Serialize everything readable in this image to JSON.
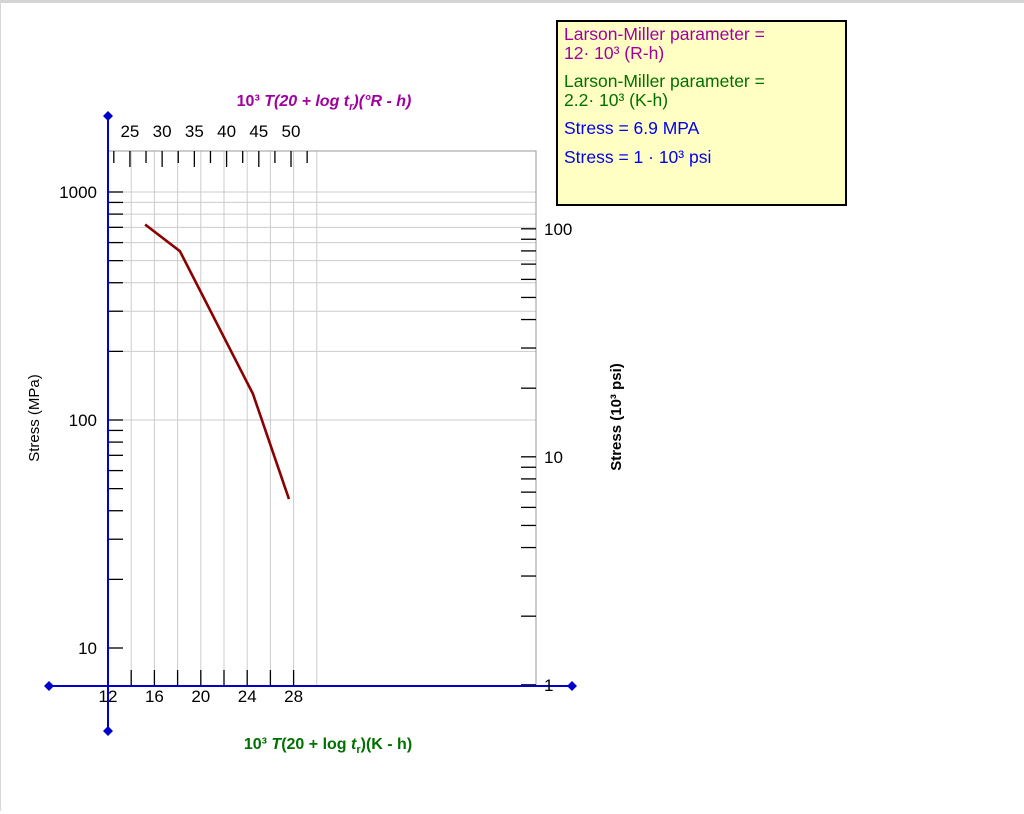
{
  "chart_data": {
    "type": "line",
    "title": "",
    "xlabel_bottom": {
      "prefix": "10³ ",
      "italic": "T",
      "rest": "(20 + log ",
      "italic2": "t",
      "sub": "r",
      "tail": ")(K - h)"
    },
    "xlabel_top": "10³ T(20 + log tr)(°R - h)",
    "ylabel_left": "Stress (MPa)",
    "ylabel_right": "Stress (10³ psi)",
    "x_bottom_ticks": [
      "12",
      "16",
      "20",
      "24",
      "28"
    ],
    "x_top_ticks": [
      "25",
      "30",
      "35",
      "40",
      "45",
      "50"
    ],
    "y_left_ticks": [
      "10",
      "100",
      "1000"
    ],
    "y_right_ticks": [
      "1",
      "10",
      "100"
    ],
    "xlim": [
      12,
      30
    ],
    "ylim_mpa": [
      10,
      1000
    ],
    "x": [
      15.2,
      18.2,
      24.5,
      27.6
    ],
    "y": [
      720,
      550,
      130,
      45
    ],
    "series_color": "#8b0000",
    "axis_color": "#0000cc",
    "bottom_label_color": "#007000",
    "top_label_color": "#a000a0",
    "grid": true
  },
  "info": {
    "lm_rh_line1": "Larson-Miller parameter =",
    "lm_rh_line2": "12· 10³ (R-h)",
    "lm_kh_line1": "Larson-Miller parameter =",
    "lm_kh_line2": "2.2· 10³ (K-h)",
    "stress_mpa": "Stress = 6.9 MPA",
    "stress_psi": "Stress = 1 · 10³ psi",
    "color_rh": "#a000a0",
    "color_kh": "#007000",
    "color_stress": "#0000ee"
  }
}
